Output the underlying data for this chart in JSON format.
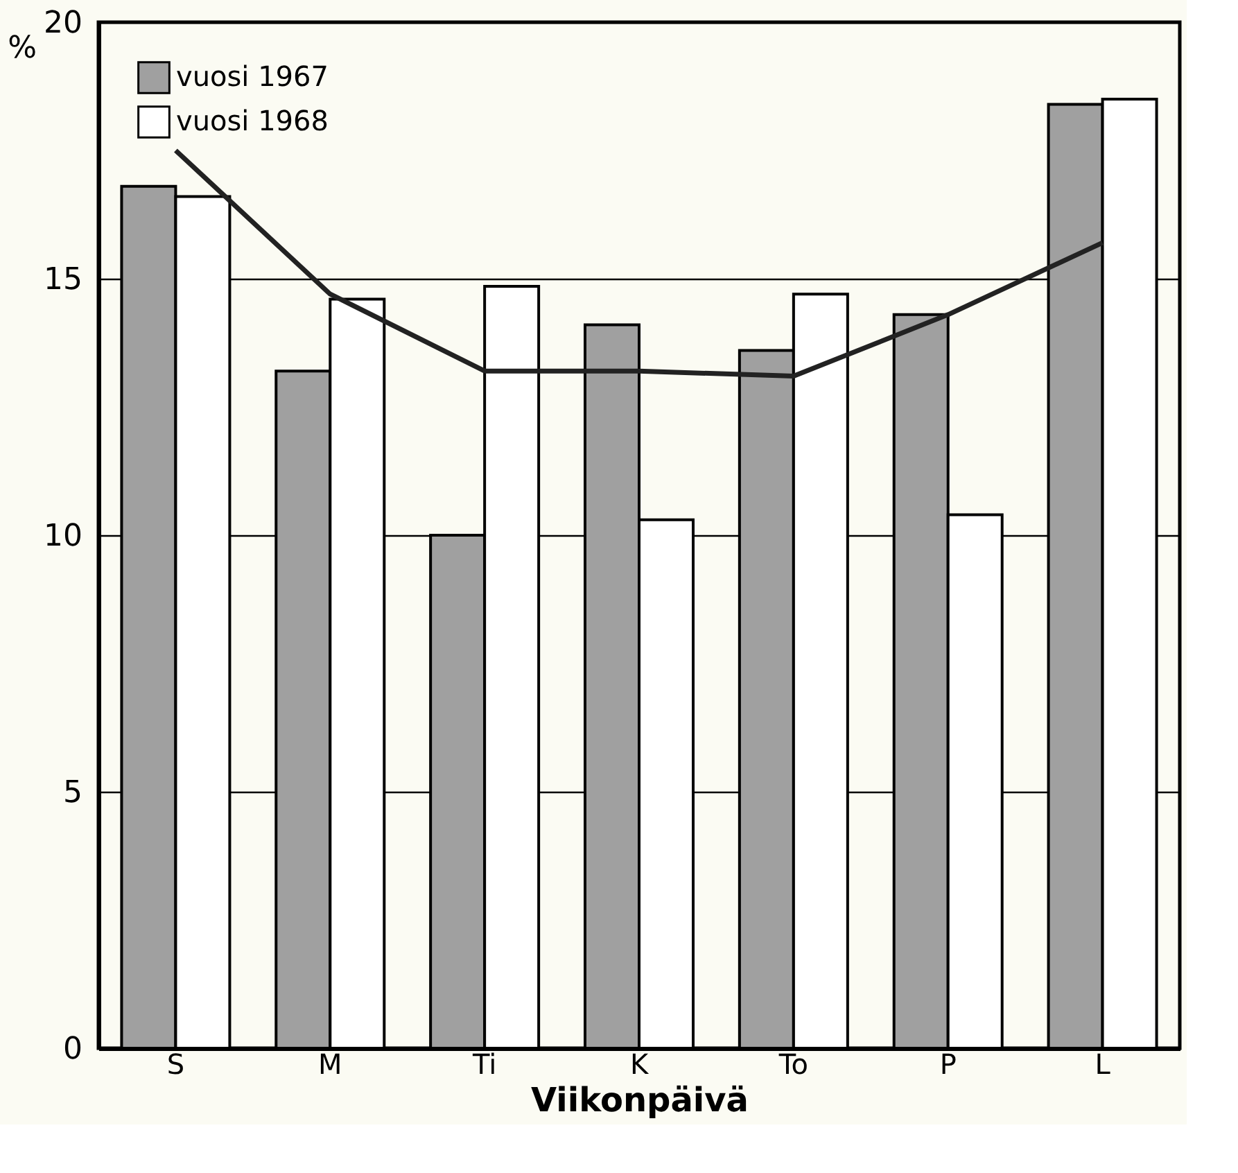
{
  "chart_data": {
    "type": "bar",
    "xlabel": "Viikonpäivä",
    "ylabel": "%",
    "categories": [
      "S",
      "M",
      "Ti",
      "K",
      "To",
      "P",
      "L"
    ],
    "series": [
      {
        "name": "vuosi 1967",
        "color": "#a0a0a0",
        "values": [
          16.8,
          13.2,
          10.0,
          14.1,
          13.6,
          14.3,
          18.4
        ]
      },
      {
        "name": "vuosi 1968",
        "color": "#ffffff",
        "values": [
          16.6,
          14.6,
          14.85,
          10.3,
          14.7,
          10.4,
          18.5
        ]
      },
      {
        "type": "line",
        "color": "#222222",
        "values": [
          17.5,
          14.7,
          13.2,
          13.2,
          13.1,
          14.3,
          15.7
        ]
      }
    ],
    "ylim": [
      0,
      20
    ],
    "yticks": [
      0,
      5,
      10,
      15,
      20
    ],
    "grid": "y",
    "legend": "top left"
  }
}
